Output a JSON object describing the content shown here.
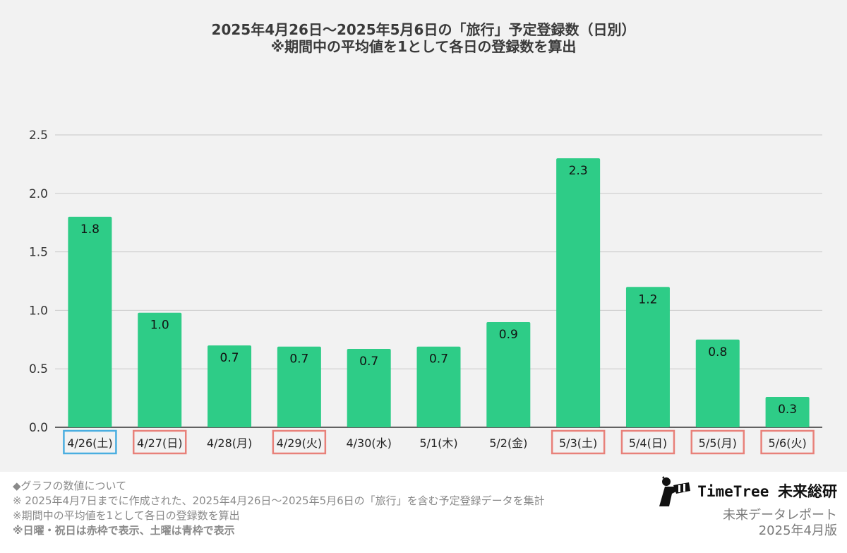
{
  "chart_data": {
    "type": "bar",
    "title_line1": "2025年4月26日〜2025年5月6日の「旅行」予定登録数（日別）",
    "title_line2": "※期間中の平均値を1として各日の登録数を算出",
    "categories": [
      "4/26(土)",
      "4/27(日)",
      "4/28(月)",
      "4/29(火)",
      "4/30(水)",
      "5/1(木)",
      "5/2(金)",
      "5/3(土)",
      "5/4(日)",
      "5/5(月)",
      "5/6(火)"
    ],
    "values": [
      1.8,
      0.98,
      0.7,
      0.69,
      0.67,
      0.69,
      0.9,
      2.3,
      1.2,
      0.75,
      0.26
    ],
    "value_labels": [
      "1.8",
      "1.0",
      "0.7",
      "0.7",
      "0.7",
      "0.7",
      "0.9",
      "2.3",
      "1.2",
      "0.8",
      "0.3"
    ],
    "category_frames": [
      "blue",
      "red",
      "none",
      "red",
      "none",
      "none",
      "none",
      "red",
      "red",
      "red",
      "red"
    ],
    "y_ticks": [
      "0.0",
      "0.5",
      "1.0",
      "1.5",
      "2.0",
      "2.5"
    ],
    "ylim": [
      0,
      2.5
    ],
    "grid": true,
    "xlabel": "",
    "ylabel": "",
    "colors": {
      "bar": "#2ecc87",
      "frame_red": "#e8817a",
      "frame_blue": "#4aaee0",
      "grid": "#c8c8c8",
      "background": "#f2f2f2"
    }
  },
  "notes": {
    "heading": "◆グラフの数値について",
    "line1": "※ 2025年4月7日までに作成された、2025年4月26日〜2025年5月6日の「旅行」を含む予定登録データを集計",
    "line2": "※期間中の平均値を1として各日の登録数を算出",
    "line3": "※日曜・祝日は赤枠で表示、土曜は青枠で表示"
  },
  "brand": {
    "name": "TimeTree 未来総研",
    "subtitle": "未来データレポート",
    "date": "2025年4月版",
    "logo_icon": "binoculars-person-icon"
  }
}
